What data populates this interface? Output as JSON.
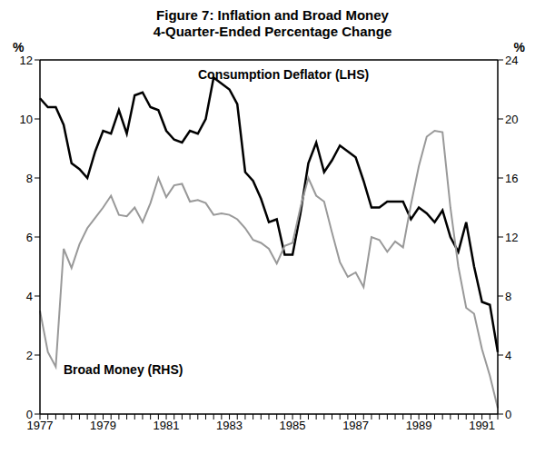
{
  "chart_data": {
    "type": "line",
    "title": "Figure 7: Inflation and Broad Money",
    "subtitle": "4-Quarter-Ended Percentage Change",
    "categories": [
      "1977",
      null,
      null,
      null,
      null,
      null,
      null,
      null,
      "1979",
      null,
      null,
      null,
      null,
      null,
      null,
      null,
      "1981",
      null,
      null,
      null,
      null,
      null,
      null,
      null,
      "1983",
      null,
      null,
      null,
      null,
      null,
      null,
      null,
      "1985",
      null,
      null,
      null,
      null,
      null,
      null,
      null,
      "1987",
      null,
      null,
      null,
      null,
      null,
      null,
      null,
      "1989",
      null,
      null,
      null,
      null,
      null,
      null,
      null,
      "1991",
      null,
      null
    ],
    "series": [
      {
        "name": "Consumption Deflator (LHS)",
        "color": "#000000",
        "values": [
          10.7,
          10.4,
          10.4,
          9.8,
          8.5,
          8.3,
          8.0,
          8.9,
          9.6,
          9.5,
          10.3,
          9.5,
          10.8,
          10.9,
          10.4,
          10.3,
          9.6,
          9.3,
          9.2,
          9.6,
          9.5,
          10.0,
          11.4,
          11.2,
          11.0,
          10.5,
          8.2,
          7.9,
          7.3,
          6.5,
          6.6,
          5.4,
          5.4,
          6.8,
          8.5,
          9.2,
          8.2,
          8.6,
          9.1,
          8.9,
          8.7,
          7.9,
          7.0,
          7.0,
          7.2,
          7.2,
          7.2,
          6.6,
          7.0,
          6.8,
          6.5,
          6.9,
          6.0,
          5.5,
          6.5,
          5.0,
          3.8,
          3.7,
          2.1
        ]
      },
      {
        "name": "Broad Money (RHS)",
        "color": "#999999",
        "axis": "y2",
        "values": [
          7.0,
          4.2,
          3.2,
          11.2,
          9.9,
          11.5,
          12.6,
          13.3,
          14.0,
          14.8,
          13.5,
          13.4,
          14.0,
          13.0,
          14.3,
          16.0,
          14.7,
          15.5,
          15.6,
          14.4,
          14.5,
          14.3,
          13.5,
          13.6,
          13.5,
          13.2,
          12.6,
          11.8,
          11.6,
          11.2,
          10.2,
          11.4,
          11.6,
          14.0,
          16.0,
          14.8,
          14.4,
          12.3,
          10.3,
          9.3,
          9.6,
          8.6,
          12.0,
          11.8,
          11.0,
          11.7,
          11.3,
          14.2,
          16.8,
          18.8,
          19.2,
          19.1,
          14.0,
          10.0,
          7.2,
          6.8,
          4.4,
          2.6,
          0.4
        ]
      }
    ],
    "ylim": [
      0,
      12
    ],
    "yticks": [
      0,
      2,
      4,
      6,
      8,
      10,
      12
    ],
    "y2lim": [
      0,
      24
    ],
    "y2ticks": [
      0,
      4,
      8,
      12,
      16,
      20,
      24
    ],
    "ylabel": "%",
    "y2label": "%"
  }
}
